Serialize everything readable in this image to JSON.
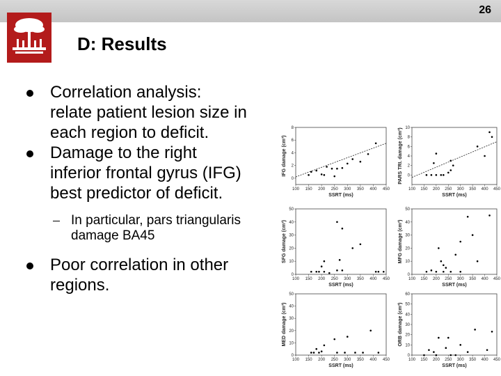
{
  "slide": {
    "page_number": "26",
    "title": "D: Results",
    "bullets": [
      "Correlation analysis: relate patient lesion size in each region to deficit.",
      "Damage to the right inferior frontal gyrus (IFG) best predictor of deficit.",
      "Poor correlation in other regions."
    ],
    "sub_bullet": "In particular, pars triangularis damage BA45"
  },
  "chart_data": [
    {
      "type": "scatter",
      "xlabel": "SSRT (ms)",
      "ylabel": "IFG damage (cm³)",
      "xlim": [
        100,
        450
      ],
      "xticks": [
        100,
        150,
        200,
        250,
        300,
        350,
        400,
        450
      ],
      "ylim": [
        -1,
        8
      ],
      "yticks": [
        0,
        2,
        4,
        6,
        8
      ],
      "x": [
        150,
        160,
        180,
        200,
        210,
        220,
        240,
        250,
        260,
        280,
        300,
        320,
        350,
        380,
        410
      ],
      "y": [
        0.5,
        1,
        1.2,
        0.6,
        0.5,
        1.8,
        1.5,
        0.3,
        1.5,
        1.6,
        2.3,
        3,
        2.6,
        3.8,
        5.5
      ],
      "trendline": {
        "x": [
          100,
          450
        ],
        "y": [
          0.2,
          5.5
        ]
      }
    },
    {
      "type": "scatter",
      "xlabel": "SSRT (ms)",
      "ylabel": "PARS TRI. damage (cm³)",
      "xlim": [
        100,
        450
      ],
      "xticks": [
        100,
        150,
        200,
        250,
        300,
        350,
        400,
        450
      ],
      "ylim": [
        -2,
        10
      ],
      "yticks": [
        0,
        2,
        4,
        6,
        8,
        10
      ],
      "x": [
        160,
        180,
        190,
        200,
        200,
        220,
        230,
        250,
        260,
        260,
        270,
        370,
        400,
        420,
        430
      ],
      "y": [
        0,
        0,
        2.5,
        0,
        4.5,
        0,
        0,
        0.5,
        1,
        3,
        2,
        6,
        4,
        9,
        8
      ],
      "trendline": {
        "x": [
          100,
          450
        ],
        "y": [
          -0.5,
          7
        ]
      }
    },
    {
      "type": "scatter",
      "xlabel": "SSRT (ms)",
      "ylabel": "SFG damage (cm³)",
      "xlim": [
        100,
        450
      ],
      "xticks": [
        100,
        150,
        200,
        250,
        300,
        350,
        400,
        450
      ],
      "ylim": [
        0,
        50
      ],
      "yticks": [
        0,
        10,
        20,
        30,
        40,
        50
      ],
      "x": [
        160,
        180,
        190,
        200,
        210,
        210,
        230,
        260,
        260,
        270,
        280,
        280,
        320,
        350,
        410,
        420,
        440
      ],
      "y": [
        2,
        2,
        2,
        6,
        10,
        2,
        1,
        40,
        3,
        11,
        35,
        3,
        20,
        23,
        2,
        2,
        2
      ]
    },
    {
      "type": "scatter",
      "xlabel": "SSRT (ms)",
      "ylabel": "MFG damage (cm³)",
      "xlim": [
        100,
        450
      ],
      "xticks": [
        100,
        150,
        200,
        250,
        300,
        350,
        400,
        450
      ],
      "ylim": [
        0,
        50
      ],
      "yticks": [
        0,
        10,
        20,
        30,
        40,
        50
      ],
      "x": [
        160,
        180,
        200,
        210,
        220,
        230,
        230,
        240,
        260,
        280,
        300,
        300,
        330,
        350,
        370,
        420
      ],
      "y": [
        2,
        3,
        2,
        20,
        10,
        7,
        2,
        5,
        2,
        15,
        2,
        25,
        44,
        30,
        10,
        45
      ]
    },
    {
      "type": "scatter",
      "xlabel": "SSRT (ms)",
      "ylabel": "MED damage (cm³)",
      "xlim": [
        100,
        450
      ],
      "xticks": [
        100,
        150,
        200,
        250,
        300,
        350,
        400,
        450
      ],
      "ylim": [
        0,
        50
      ],
      "yticks": [
        0,
        10,
        20,
        30,
        40,
        50
      ],
      "x": [
        160,
        170,
        180,
        190,
        200,
        210,
        250,
        260,
        290,
        300,
        330,
        360,
        390,
        420
      ],
      "y": [
        2,
        2,
        5,
        2,
        3,
        8,
        13,
        2,
        2,
        15,
        2,
        2,
        20,
        2
      ]
    },
    {
      "type": "scatter",
      "xlabel": "SSRT (ms)",
      "ylabel": "ORB damage (cm³)",
      "xlim": [
        100,
        450
      ],
      "xticks": [
        100,
        150,
        200,
        250,
        300,
        350,
        400,
        450
      ],
      "ylim": [
        0,
        60
      ],
      "yticks": [
        0,
        10,
        20,
        30,
        40,
        50,
        60
      ],
      "x": [
        150,
        170,
        190,
        200,
        210,
        240,
        250,
        260,
        280,
        300,
        330,
        360,
        410,
        430
      ],
      "y": [
        0,
        5,
        3,
        0,
        17,
        7,
        17,
        0,
        0,
        10,
        3,
        25,
        5,
        23
      ]
    }
  ]
}
